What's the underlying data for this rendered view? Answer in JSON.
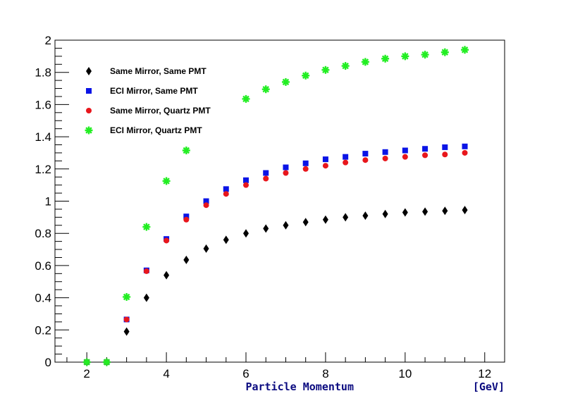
{
  "chart_data": {
    "type": "scatter",
    "title": "",
    "xlabel": "Particle Momentum",
    "xunit": "[GeV]",
    "ylabel": "",
    "xlim": [
      1.2,
      12.5
    ],
    "ylim": [
      0,
      2
    ],
    "x_ticks": [
      2,
      4,
      6,
      8,
      10,
      12
    ],
    "y_ticks": [
      0,
      0.2,
      0.4,
      0.6,
      0.8,
      1,
      1.2,
      1.4,
      1.6,
      1.8,
      2
    ],
    "grid": false,
    "legend_position": "top-left",
    "series": [
      {
        "name": "Same Mirror, Same PMT",
        "marker": "diamond",
        "color": "#000000",
        "x": [
          2,
          2.5,
          3,
          3.5,
          4,
          4.5,
          5,
          5.5,
          6,
          6.5,
          7,
          7.5,
          8,
          8.5,
          9,
          9.5,
          10,
          10.5,
          11,
          11.5
        ],
        "y": [
          0,
          0,
          0.19,
          0.4,
          0.54,
          0.635,
          0.705,
          0.76,
          0.8,
          0.83,
          0.85,
          0.87,
          0.885,
          0.9,
          0.91,
          0.92,
          0.93,
          0.935,
          0.94,
          0.945
        ]
      },
      {
        "name": "ECI Mirror, Same PMT",
        "marker": "square",
        "color": "#0a14e6",
        "x": [
          2,
          2.5,
          3,
          3.5,
          4,
          4.5,
          5,
          5.5,
          6,
          6.5,
          7,
          7.5,
          8,
          8.5,
          9,
          9.5,
          10,
          10.5,
          11,
          11.5
        ],
        "y": [
          0,
          0,
          0.265,
          0.57,
          0.765,
          0.905,
          1.0,
          1.075,
          1.13,
          1.175,
          1.21,
          1.235,
          1.26,
          1.275,
          1.295,
          1.305,
          1.315,
          1.325,
          1.335,
          1.34
        ]
      },
      {
        "name": "Same Mirror, Quartz PMT",
        "marker": "circle",
        "color": "#e8161c",
        "x": [
          2,
          2.5,
          3,
          3.5,
          4,
          4.5,
          5,
          5.5,
          6,
          6.5,
          7,
          7.5,
          8,
          8.5,
          9,
          9.5,
          10,
          10.5,
          11,
          11.5
        ],
        "y": [
          0,
          0,
          0.265,
          0.565,
          0.755,
          0.885,
          0.975,
          1.045,
          1.1,
          1.14,
          1.175,
          1.2,
          1.22,
          1.24,
          1.255,
          1.265,
          1.275,
          1.285,
          1.29,
          1.3
        ]
      },
      {
        "name": "ECI Mirror, Quartz PMT",
        "marker": "star",
        "color": "#22ee22",
        "x": [
          2,
          2.5,
          3,
          3.5,
          4,
          4.5,
          6,
          6.5,
          7,
          7.5,
          8,
          8.5,
          9,
          9.5,
          10,
          10.5,
          11,
          11.5
        ],
        "y": [
          0,
          0,
          0.405,
          0.84,
          1.125,
          1.315,
          1.635,
          1.695,
          1.74,
          1.78,
          1.815,
          1.84,
          1.865,
          1.885,
          1.9,
          1.91,
          1.925,
          1.94
        ]
      }
    ]
  }
}
